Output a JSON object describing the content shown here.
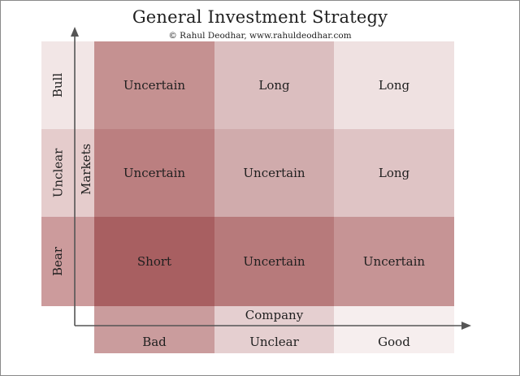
{
  "title": "General Investment Strategy",
  "subtitle": "© Rahul Deodhar, www.rahuldeodhar.com",
  "axes": {
    "y_title": "Markets",
    "x_title": "Company"
  },
  "rows": [
    {
      "label": "Bull",
      "cells": [
        "Uncertain",
        "Long",
        "Long"
      ]
    },
    {
      "label": "Unclear",
      "cells": [
        "Uncertain",
        "Uncertain",
        "Long"
      ]
    },
    {
      "label": "Bear",
      "cells": [
        "Short",
        "Uncertain",
        "Uncertain"
      ]
    }
  ],
  "columns": [
    "Bad",
    "Unclear",
    "Good"
  ],
  "colors": {
    "accent": "#a7595b",
    "axis": "#555555"
  }
}
